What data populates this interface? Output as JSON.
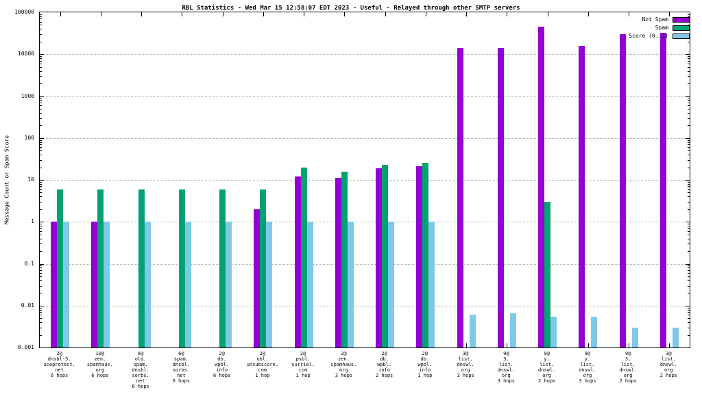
{
  "title": "RBL Statistics - Wed Mar 15 12:58:07 EDT 2023 - Useful - Relayed through other SMTP servers",
  "ylabel": "Message Count or Spam Score",
  "colors": {
    "not_spam": "#9400d3",
    "spam": "#00a273",
    "score": "#7ec9e8"
  },
  "chart_data": {
    "type": "bar",
    "y_scale": "log",
    "ylim": [
      0.001,
      100000
    ],
    "y_tick_labels": [
      "100000",
      "10000",
      "1000",
      "100",
      "10",
      "1",
      "0.1",
      "0.01",
      "0.001"
    ],
    "grid": true,
    "legend_position": "top-right",
    "categories": [
      {
        "label_lines": [
          "2@",
          "dnsbl-3.",
          "uceprotect.",
          "net",
          "6 hops"
        ]
      },
      {
        "label_lines": [
          "10@",
          "zen.",
          "spamhaus.",
          "org",
          "6 hops"
        ]
      },
      {
        "label_lines": [
          "6@",
          "old.",
          "spam.",
          "dnsbl.",
          "sorbs.",
          "net",
          "6 hops"
        ]
      },
      {
        "label_lines": [
          "6@",
          "spam.",
          "dnsbl.",
          "sorbs.",
          "net",
          "6 hops"
        ]
      },
      {
        "label_lines": [
          "2@",
          "db.",
          "wpbl.",
          "info",
          "6 hops"
        ]
      },
      {
        "label_lines": [
          "2@",
          "ubl.",
          "unsubscore.",
          "com",
          "1 hop"
        ]
      },
      {
        "label_lines": [
          "2@",
          "psbl.",
          "surriel.",
          "com",
          "1 hop"
        ]
      },
      {
        "label_lines": [
          "2@",
          "zen.",
          "spamhaus.",
          "org",
          "3 hops"
        ]
      },
      {
        "label_lines": [
          "2@",
          "db.",
          "wpbl.",
          "info",
          "2 hops"
        ]
      },
      {
        "label_lines": [
          "2@",
          "db.",
          "wpbl.",
          "info",
          "1 hop"
        ]
      },
      {
        "label_lines": [
          "3@",
          "list.",
          "dnswl.",
          "org",
          "3 hops"
        ]
      },
      {
        "label_lines": [
          "9@",
          "3.",
          "list.",
          "dnswl.",
          "org",
          "3 hops"
        ]
      },
      {
        "label_lines": [
          "9@",
          "y.",
          "list.",
          "dnswl.",
          "org",
          "2 hops"
        ]
      },
      {
        "label_lines": [
          "9@",
          "y.",
          "list.",
          "dnswl.",
          "org",
          "3 hops"
        ]
      },
      {
        "label_lines": [
          "9@",
          "3.",
          "list.",
          "dnswl.",
          "org",
          "2 hops"
        ]
      },
      {
        "label_lines": [
          "3@",
          "list.",
          "dnswl.",
          "org",
          "2 hops"
        ]
      }
    ],
    "series": [
      {
        "name": "Not Spam",
        "color": "#9400d3",
        "values": [
          1,
          1,
          null,
          null,
          null,
          2,
          12,
          11,
          19,
          21,
          14000,
          14000,
          45000,
          16000,
          30000,
          32000
        ]
      },
      {
        "name": "Spam",
        "color": "#00a273",
        "values": [
          6,
          6,
          6,
          6,
          6,
          6,
          20,
          16,
          23,
          26,
          null,
          null,
          3,
          null,
          null,
          null
        ]
      },
      {
        "name": "Score (0..1)",
        "color": "#7ec9e8",
        "values": [
          1,
          1,
          1,
          1,
          1,
          1,
          1,
          1,
          1,
          1,
          0.006,
          0.0065,
          0.0055,
          0.0055,
          0.003,
          0.003
        ]
      }
    ]
  }
}
